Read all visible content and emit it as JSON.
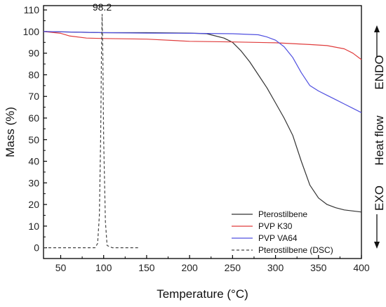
{
  "chart_data": {
    "type": "line",
    "xlabel": "Temperature (°C)",
    "ylabel": "Mass (%)",
    "right_axis_label": {
      "top": "ENDO",
      "middle": "Heat flow",
      "bottom": "EXO"
    },
    "xlim": [
      30,
      400
    ],
    "ylim": [
      -5,
      112
    ],
    "x_ticks": [
      50,
      100,
      150,
      200,
      250,
      300,
      350,
      400
    ],
    "x_tick_labels": [
      "50",
      "100",
      "150",
      "200",
      "250",
      "300",
      "350",
      "400"
    ],
    "y_ticks": [
      0,
      10,
      20,
      30,
      40,
      50,
      60,
      70,
      80,
      90,
      100,
      110
    ],
    "y_tick_labels": [
      "0",
      "10",
      "20",
      "30",
      "40",
      "50",
      "60",
      "70",
      "80",
      "90",
      "100",
      "110"
    ],
    "grid": false,
    "legend_position": "bottom-right",
    "annotations": [
      {
        "text": "98.2",
        "x": 98.2,
        "y": 109
      }
    ],
    "series": [
      {
        "name": "Pterostilbene",
        "color": "#333333",
        "dash": "solid",
        "x": [
          30,
          100,
          150,
          200,
          220,
          240,
          250,
          260,
          270,
          280,
          290,
          300,
          310,
          320,
          330,
          340,
          350,
          360,
          370,
          380,
          390,
          400
        ],
        "y": [
          100,
          99.5,
          99.5,
          99.3,
          99,
          97,
          95,
          91,
          86,
          80,
          74,
          67,
          60,
          52,
          40,
          29,
          23,
          20,
          18.5,
          17.5,
          17,
          16.5
        ]
      },
      {
        "name": "PVP K30",
        "color": "#e03c3c",
        "dash": "solid",
        "x": [
          30,
          50,
          60,
          80,
          100,
          150,
          200,
          250,
          300,
          340,
          360,
          380,
          390,
          400
        ],
        "y": [
          100,
          99.2,
          98,
          97,
          96.8,
          96.5,
          95.5,
          95.2,
          94.8,
          94,
          93.5,
          92,
          90,
          87
        ]
      },
      {
        "name": "PVP VA64",
        "color": "#5050e0",
        "dash": "solid",
        "x": [
          30,
          100,
          150,
          200,
          250,
          280,
          290,
          300,
          310,
          320,
          330,
          340,
          350,
          360,
          370,
          380,
          390,
          400
        ],
        "y": [
          100,
          99.5,
          99.3,
          99.2,
          99,
          98.5,
          97.5,
          96,
          93,
          88,
          81,
          75,
          72.5,
          70.5,
          68.5,
          66.5,
          64.5,
          62.5
        ]
      },
      {
        "name": "Pterostilbene (DSC)",
        "color": "#444444",
        "dash": "dashed",
        "x": [
          30,
          90,
          93,
          95,
          96.5,
          97.5,
          98.2,
          99,
          100,
          102,
          104,
          110,
          120,
          140
        ],
        "y": [
          0,
          0,
          2,
          15,
          50,
          90,
          108,
          90,
          50,
          12,
          1,
          0,
          0,
          0
        ]
      }
    ]
  }
}
